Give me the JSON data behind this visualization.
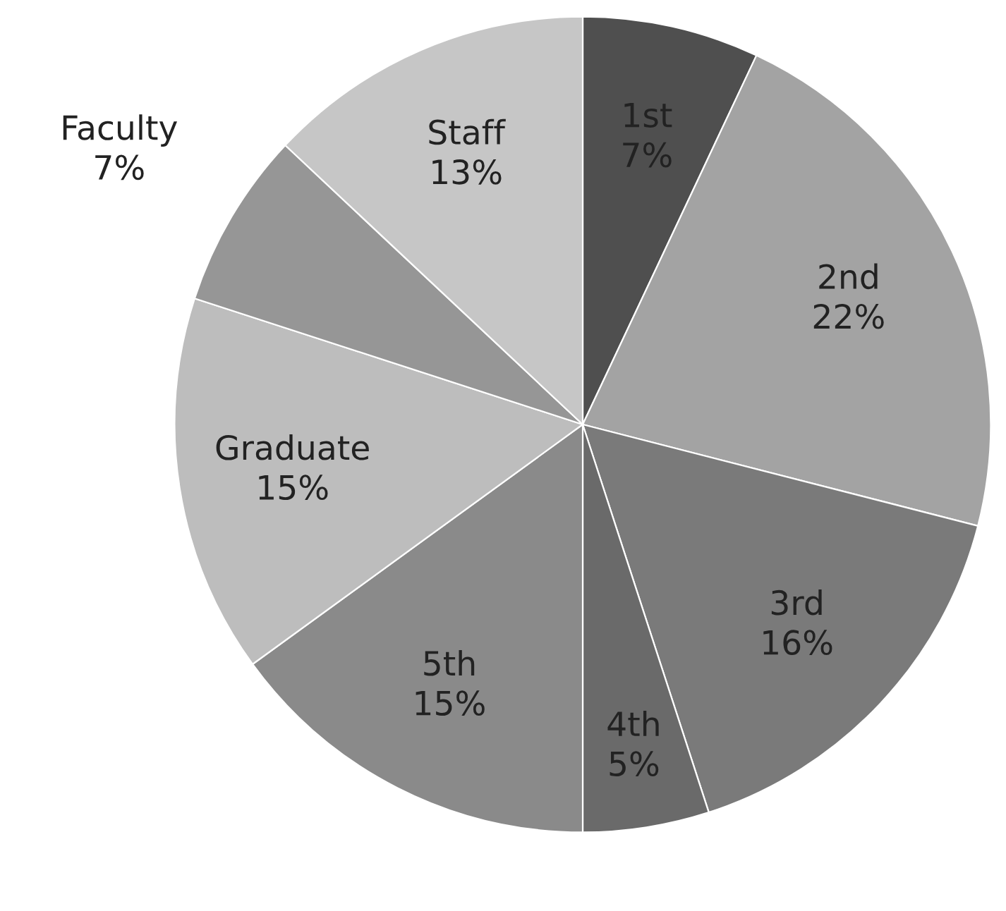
{
  "chart_data": {
    "type": "pie",
    "categories": [
      "1st",
      "2nd",
      "3rd",
      "4th",
      "5th",
      "Graduate",
      "Faculty",
      "Staff"
    ],
    "values": [
      7,
      22,
      16,
      5,
      15,
      15,
      7,
      13
    ],
    "colors": [
      "#4f4f4f",
      "#a3a3a3",
      "#7a7a7a",
      "#6a6a6a",
      "#8a8a8a",
      "#bdbdbd",
      "#969696",
      "#c6c6c6"
    ],
    "value_labels": [
      "7%",
      "22%",
      "16%",
      "5%",
      "15%",
      "15%",
      "7%",
      "13%"
    ],
    "legend": false
  }
}
